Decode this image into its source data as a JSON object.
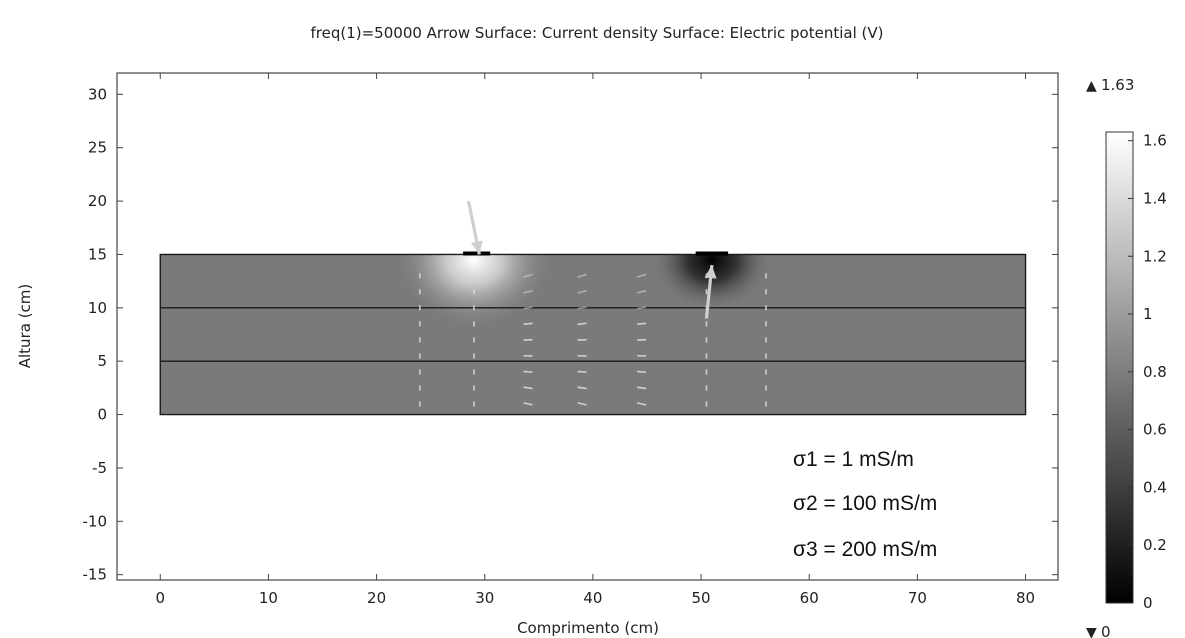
{
  "chart_data": {
    "type": "heatmap",
    "title": "freq(1)=50000   Arrow Surface: Current density  Surface: Electric potential (V)",
    "xlabel": "Comprimento (cm)",
    "ylabel": "Altura (cm)",
    "xlim": [
      -4,
      83
    ],
    "ylim": [
      -15.5,
      32
    ],
    "x_ticks": [
      "0",
      "10",
      "20",
      "30",
      "40",
      "50",
      "60",
      "70",
      "80"
    ],
    "y_ticks": [
      "30",
      "25",
      "20",
      "15",
      "10",
      "5",
      "0",
      "-5",
      "-10",
      "-15"
    ],
    "domain": {
      "x": [
        0,
        80
      ],
      "y": [
        0,
        15
      ]
    },
    "layer_boundaries_y": [
      5,
      10
    ],
    "electrodes": [
      {
        "x": [
          28,
          30.5
        ],
        "y": 15
      },
      {
        "x": [
          49.5,
          52.5
        ],
        "y": 15
      }
    ],
    "hot_spot": {
      "x": 29,
      "y": 14.5
    },
    "cold_spot": {
      "x": 51,
      "y": 14.5
    },
    "main_arrows": [
      {
        "from": [
          28.5,
          20
        ],
        "to": [
          29.5,
          15
        ]
      },
      {
        "from": [
          50.5,
          9
        ],
        "to": [
          51,
          14
        ]
      }
    ],
    "colorbar": {
      "min": 0,
      "max": 1.63,
      "max_label": "1.63",
      "min_label": "0",
      "ticks": [
        "1.6",
        "1.4",
        "1.2",
        "1",
        "0.8",
        "0.6",
        "0.4",
        "0.2",
        "0"
      ]
    },
    "annotations": [
      "σ1  = 1 mS/m",
      "σ2  = 100 mS/m",
      "σ3  = 200 mS/m"
    ],
    "grid": false,
    "colors": {
      "background_potential": "#7a7a7a",
      "boundary": "#1a1a1a",
      "arrows": "#d9d9d9"
    }
  }
}
